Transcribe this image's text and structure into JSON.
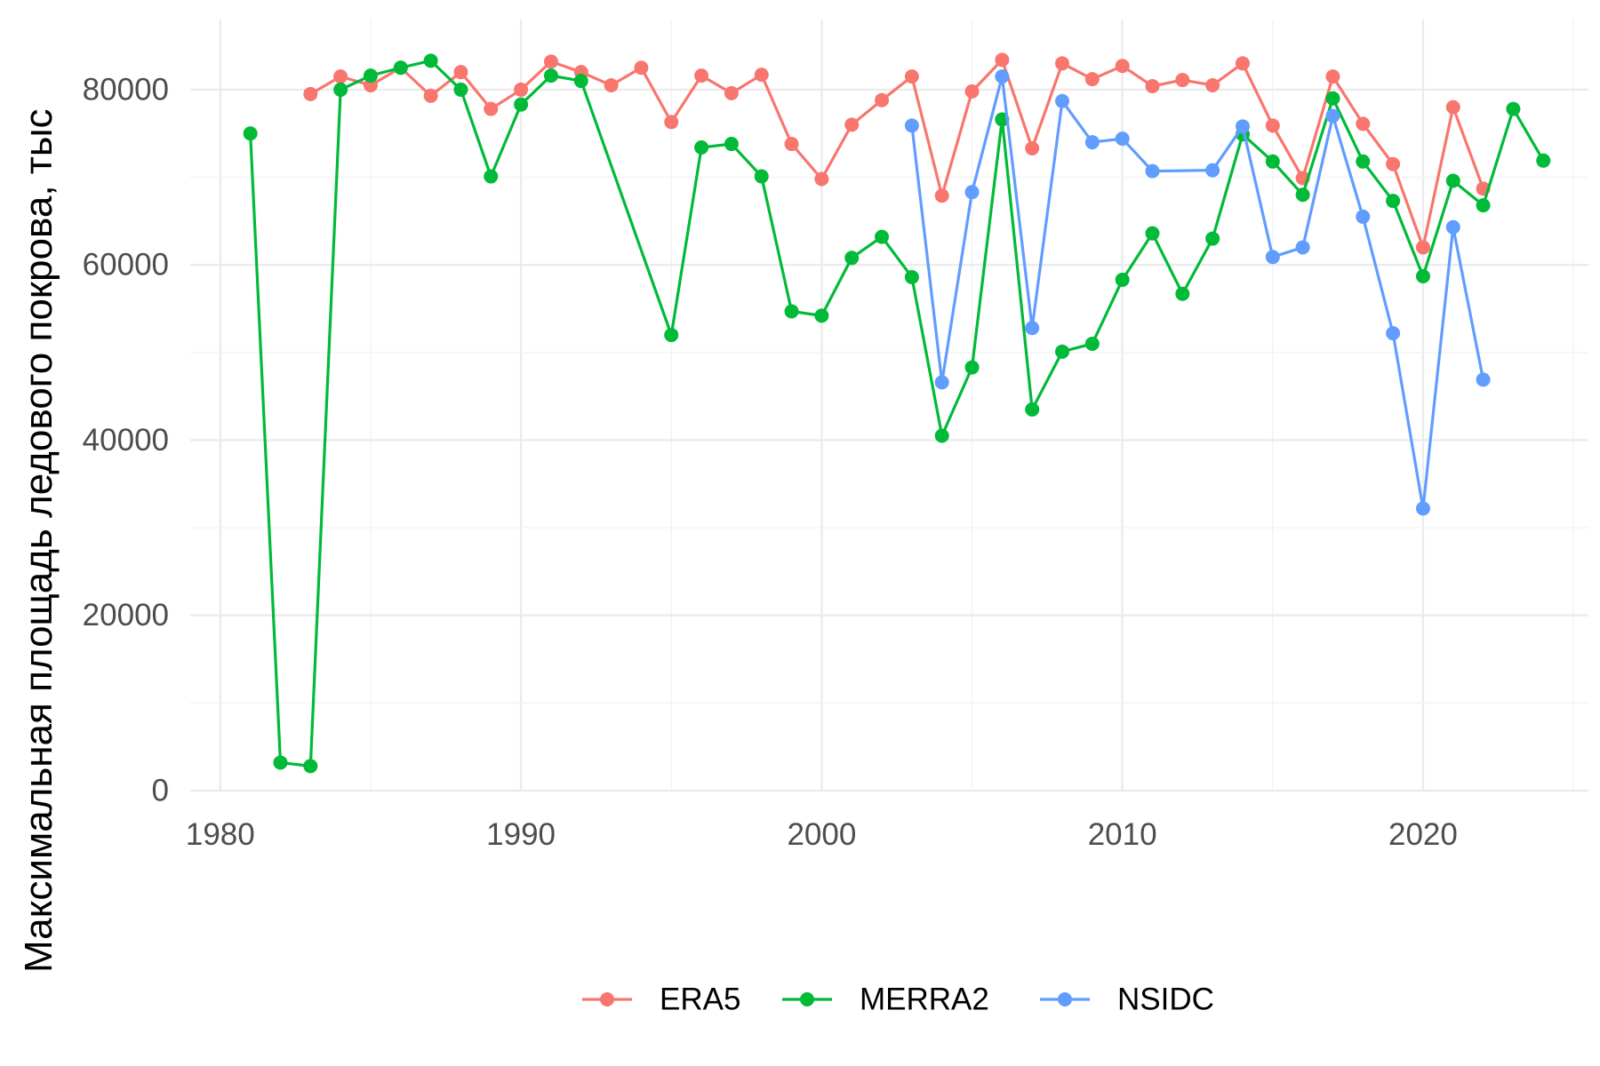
{
  "chart_data": {
    "type": "line",
    "xlabel": "",
    "ylabel": "Максимальная площадь ледового покрова, тыс",
    "xlim": [
      1979,
      2025.5
    ],
    "ylim": [
      0,
      88000
    ],
    "xticks": [
      1980,
      1990,
      2000,
      2010,
      2020
    ],
    "yticks": [
      0,
      20000,
      40000,
      60000,
      80000
    ],
    "grid": true,
    "legend_position": "bottom",
    "series": [
      {
        "name": "ERA5",
        "color": "#F8766D",
        "x": [
          1983,
          1984,
          1985,
          1986,
          1987,
          1988,
          1989,
          1990,
          1991,
          1992,
          1993,
          1994,
          1995,
          1996,
          1997,
          1998,
          1999,
          2000,
          2001,
          2002,
          2003,
          2004,
          2005,
          2006,
          2007,
          2008,
          2009,
          2010,
          2011,
          2012,
          2013,
          2014,
          2015,
          2016,
          2017,
          2018,
          2019,
          2020,
          2021,
          2022
        ],
        "values": [
          79500,
          81500,
          80500,
          82500,
          79300,
          82000,
          77800,
          80000,
          83200,
          82000,
          80500,
          82500,
          76300,
          81600,
          79600,
          81700,
          73800,
          69800,
          76000,
          78800,
          81500,
          67900,
          79800,
          83400,
          73300,
          83000,
          81200,
          82700,
          80400,
          81100,
          80500,
          83000,
          75900,
          69900,
          81500,
          76100,
          71500,
          62000,
          78000,
          68700
        ]
      },
      {
        "name": "MERRA2",
        "color": "#00BA38",
        "x": [
          1981,
          1982,
          1983,
          1984,
          1985,
          1986,
          1987,
          1988,
          1989,
          1990,
          1991,
          1992,
          1995,
          1996,
          1997,
          1998,
          1999,
          2000,
          2001,
          2002,
          2003,
          2004,
          2005,
          2006,
          2007,
          2008,
          2009,
          2010,
          2011,
          2012,
          2013,
          2014,
          2015,
          2016,
          2017,
          2018,
          2019,
          2020,
          2021,
          2022,
          2023,
          2024
        ],
        "values": [
          75000,
          3200,
          2800,
          80000,
          81600,
          82500,
          83300,
          80000,
          70100,
          78300,
          81600,
          81000,
          52000,
          73400,
          73800,
          70100,
          54700,
          54200,
          60800,
          63200,
          58600,
          40500,
          48300,
          76600,
          43500,
          50100,
          51000,
          58300,
          63600,
          56700,
          63000,
          74900,
          71800,
          68000,
          79000,
          71800,
          67300,
          58700,
          69600,
          66800,
          77800,
          71900
        ]
      },
      {
        "name": "NSIDC",
        "color": "#619CFF",
        "x": [
          2003,
          2004,
          2005,
          2006,
          2007,
          2008,
          2009,
          2010,
          2011,
          2013,
          2014,
          2015,
          2016,
          2017,
          2018,
          2019,
          2020,
          2021,
          2022
        ],
        "values": [
          75900,
          46600,
          68300,
          81500,
          52800,
          78700,
          74000,
          74400,
          70700,
          70800,
          75800,
          60900,
          62000,
          77000,
          65500,
          52200,
          32200,
          64300,
          46900
        ]
      }
    ]
  }
}
